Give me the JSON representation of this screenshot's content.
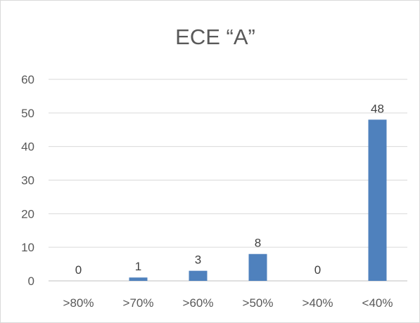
{
  "chart_data": {
    "type": "bar",
    "title": "ECE “A”",
    "categories": [
      ">80%",
      ">70%",
      ">60%",
      ">50%",
      ">40%",
      "<40%"
    ],
    "values": [
      0,
      1,
      3,
      8,
      0,
      48
    ],
    "data_labels": [
      "0",
      "1",
      "3",
      "8",
      "0",
      "48"
    ],
    "ylim": [
      0,
      60
    ],
    "yticks": [
      "0",
      "10",
      "20",
      "30",
      "40",
      "50",
      "60"
    ],
    "grid": true,
    "legend": "none",
    "colors": {
      "bar": "#4f81bd",
      "grid": "#d9d9d9",
      "axis": "#bfbfbf",
      "text": "#595959"
    }
  }
}
